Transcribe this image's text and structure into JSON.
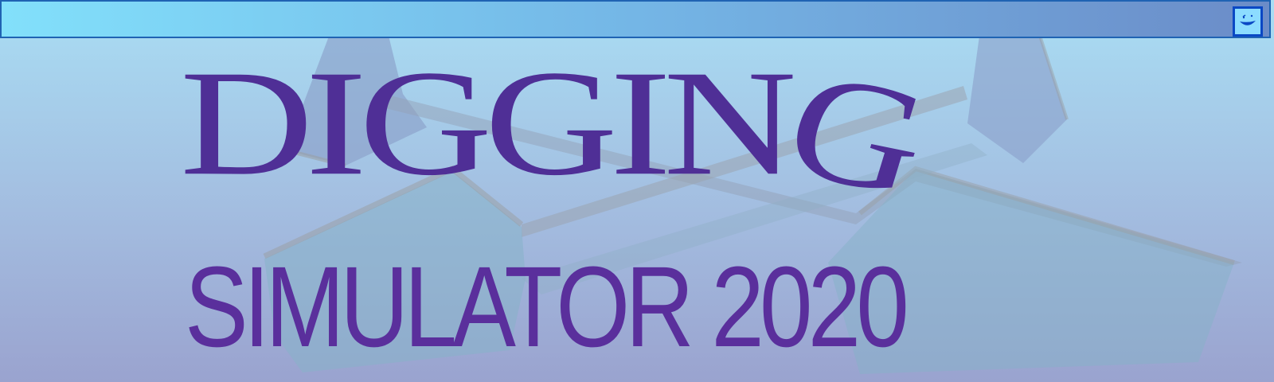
{
  "header": {
    "button_icon": "smiley-face-icon"
  },
  "title": {
    "line1_main": "DIGGIN",
    "line1_last": "G",
    "line2": "SIMULATOR 2020"
  },
  "colors": {
    "title": "#5a2f9c",
    "sky_top": "#a9def4",
    "sky_bottom": "#9aa3cf",
    "bar_border": "#1f63b3",
    "button_border": "#0a48c4"
  }
}
